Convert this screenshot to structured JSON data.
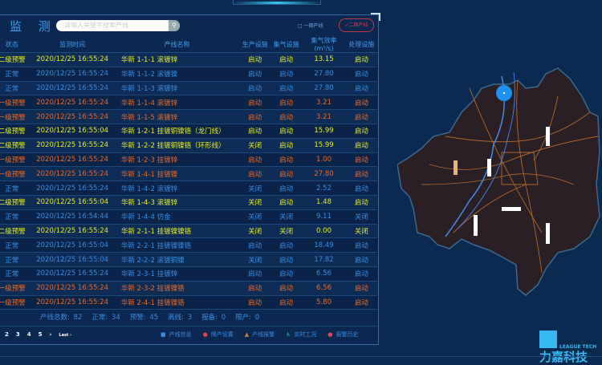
{
  "panel": {
    "title": "监 测",
    "search_placeholder": "请输入关键字搜索产线",
    "line_option_1": "一期产线",
    "line_option_2": "二期产线",
    "line_option_2_checked": true
  },
  "colors": {
    "warning_level2": "#e4ee28",
    "warning_level1": "#f06a28",
    "normal": "#3a8ee0",
    "background": "#0b2a4f"
  },
  "table": {
    "headers": [
      "状态",
      "监测时间",
      "产线名称",
      "生产设施",
      "集气设施",
      "集气效率(m³/s)",
      "处理设施"
    ],
    "rows": [
      {
        "level": "y",
        "status": "二级预警",
        "time": "2020/12/25 16:55:24",
        "name": "华新 1-1-1 滚镀锌",
        "prod": "启动",
        "gas": "启动",
        "eff": "13.15",
        "treat": "启动"
      },
      {
        "level": "n",
        "status": "正常",
        "time": "2020/12/25 16:55:24",
        "name": "华新 1-1-2 滚镀镍",
        "prod": "启动",
        "gas": "启动",
        "eff": "27.80",
        "treat": "启动"
      },
      {
        "level": "n",
        "status": "正常",
        "time": "2020/12/25 16:55:24",
        "name": "华新 1-1-3 滚镀锌",
        "prod": "启动",
        "gas": "启动",
        "eff": "27.80",
        "treat": "启动"
      },
      {
        "level": "o",
        "status": "一级预警",
        "time": "2020/12/25 16:55:24",
        "name": "华新 1-1-4 滚镀锌",
        "prod": "启动",
        "gas": "启动",
        "eff": "3.21",
        "treat": "启动"
      },
      {
        "level": "o",
        "status": "一级预警",
        "time": "2020/12/25 16:55:24",
        "name": "华新 1-1-5 滚镀锌",
        "prod": "启动",
        "gas": "启动",
        "eff": "3.21",
        "treat": "启动"
      },
      {
        "level": "y",
        "status": "二级预警",
        "time": "2020/12/25 16:55:04",
        "name": "华新 1-2-1 挂镀铜镍铬（龙门线）",
        "prod": "启动",
        "gas": "启动",
        "eff": "15.99",
        "treat": "启动"
      },
      {
        "level": "y",
        "status": "二级预警",
        "time": "2020/12/25 16:55:24",
        "name": "华新 1-2-2 挂镀铜镍铬（环形线）",
        "prod": "关闭",
        "gas": "启动",
        "eff": "15.99",
        "treat": "启动"
      },
      {
        "level": "o",
        "status": "一级预警",
        "time": "2020/12/25 16:55:24",
        "name": "华新 1-2-3 挂镀锌",
        "prod": "启动",
        "gas": "启动",
        "eff": "1.00",
        "treat": "启动"
      },
      {
        "level": "o",
        "status": "一级预警",
        "time": "2020/12/25 16:55:24",
        "name": "华新 1-4-1 挂镀镍",
        "prod": "启动",
        "gas": "启动",
        "eff": "27.80",
        "treat": "启动"
      },
      {
        "level": "n",
        "status": "正常",
        "time": "2020/12/25 16:55:24",
        "name": "华新 1-4-2 滚镀锌",
        "prod": "关闭",
        "gas": "启动",
        "eff": "2.52",
        "treat": "启动"
      },
      {
        "level": "y",
        "status": "二级预警",
        "time": "2020/12/25 16:55:04",
        "name": "华新 1-4-3 滚镀锌",
        "prod": "关闭",
        "gas": "启动",
        "eff": "1.48",
        "treat": "启动"
      },
      {
        "level": "n",
        "status": "正常",
        "time": "2020/12/25 16:54:44",
        "name": "华新 1-4-4 仿金",
        "prod": "关闭",
        "gas": "关闭",
        "eff": "9.11",
        "treat": "关闭"
      },
      {
        "level": "y",
        "status": "二级预警",
        "time": "2020/12/25 16:55:24",
        "name": "华新 2-1-1 挂镀镍镍铬",
        "prod": "关闭",
        "gas": "关闭",
        "eff": "0.00",
        "treat": "关闭"
      },
      {
        "level": "n",
        "status": "正常",
        "time": "2020/12/25 16:55:04",
        "name": "华新 2-2-1 挂镀镍镍铬",
        "prod": "启动",
        "gas": "启动",
        "eff": "18.49",
        "treat": "启动"
      },
      {
        "level": "n",
        "status": "正常",
        "time": "2020/12/25 16:55:04",
        "name": "华新 2-2-2 滚镀铜镍",
        "prod": "关闭",
        "gas": "启动",
        "eff": "17.82",
        "treat": "启动"
      },
      {
        "level": "n",
        "status": "正常",
        "time": "2020/12/25 16:55:24",
        "name": "华新 2-3-1 挂镀锌",
        "prod": "启动",
        "gas": "启动",
        "eff": "6.56",
        "treat": "启动"
      },
      {
        "level": "o",
        "status": "一级预警",
        "time": "2020/12/25 16:55:24",
        "name": "华新 2-3-2 挂镀镍铬",
        "prod": "启动",
        "gas": "启动",
        "eff": "6.56",
        "treat": "启动"
      },
      {
        "level": "o",
        "status": "一级预警",
        "time": "2020/12/25 16:55:24",
        "name": "华新 2-4-1 挂镀镍铬",
        "prod": "启动",
        "gas": "启动",
        "eff": "5.80",
        "treat": "启动"
      }
    ]
  },
  "summary": [
    "产线总数: 82",
    "正常: 34",
    "预警: 45",
    "离线: 3",
    "报备: 0",
    "限产: 0"
  ],
  "pagination": {
    "pages": [
      "2",
      "3",
      "4",
      "5"
    ],
    "next": "›",
    "last": "Last ›"
  },
  "footer_links": [
    {
      "icon": "info-icon",
      "label": "产线信息"
    },
    {
      "icon": "limit-icon",
      "label": "限产设置"
    },
    {
      "icon": "warning-icon",
      "label": "产线报警"
    },
    {
      "icon": "realtime-icon",
      "label": "实时工况"
    },
    {
      "icon": "history-icon",
      "label": "报警历史"
    }
  ],
  "logo": {
    "name": "力嘉科技",
    "english": "LEAGUE TECH"
  }
}
